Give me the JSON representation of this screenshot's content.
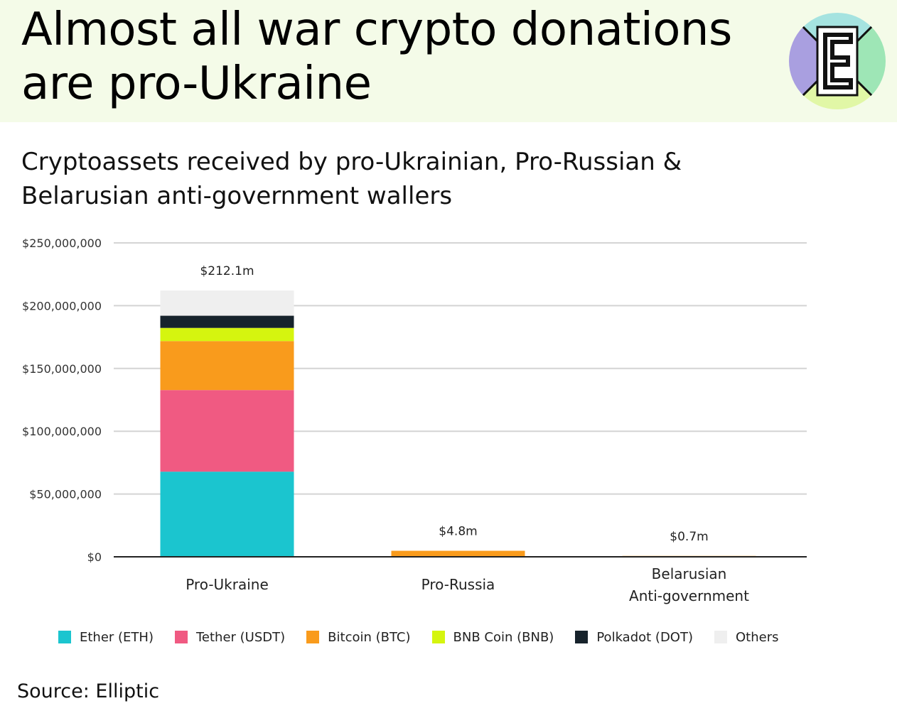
{
  "headline": "Almost all war crypto donations are pro-Ukraine",
  "subtitle": "Cryptoassets received by pro-Ukrainian, Pro-Russian & Belarusian anti-government wallers",
  "source": "Source: Elliptic",
  "logo": {
    "icon": "letter-e-logo-icon",
    "letter": "E",
    "colors": {
      "top": "#a5e3e0",
      "right": "#9ee6b6",
      "bottom": "#e1f7a6",
      "left": "#a99fe0"
    }
  },
  "chart_data": {
    "type": "bar",
    "stacked": true,
    "categories": [
      "Pro-Ukraine",
      "Pro-Russia",
      "Belarusian Anti-government"
    ],
    "category_lines": [
      [
        "Pro-Ukraine"
      ],
      [
        "Pro-Russia"
      ],
      [
        "Belarusian",
        "Anti-government"
      ]
    ],
    "totals_labels": [
      "$212.1m",
      "$4.8m",
      "$0.7m"
    ],
    "series": [
      {
        "name": "Ether (ETH)",
        "color": "#1bc5cf",
        "values": [
          67800000,
          0,
          0
        ]
      },
      {
        "name": "Tether (USDT)",
        "color": "#f05a82",
        "values": [
          65000000,
          0,
          0
        ]
      },
      {
        "name": "Bitcoin (BTC)",
        "color": "#f99b1c",
        "values": [
          39000000,
          4800000,
          700000
        ]
      },
      {
        "name": "BNB Coin (BNB)",
        "color": "#d5f50f",
        "values": [
          10500000,
          0,
          0
        ]
      },
      {
        "name": "Polkadot (DOT)",
        "color": "#17232c",
        "values": [
          9700000,
          0,
          0
        ]
      },
      {
        "name": "Others",
        "color": "#efefef",
        "values": [
          20100000,
          0,
          0
        ]
      }
    ],
    "y_ticks": [
      "$0",
      "$50,000,000",
      "$100,000,000",
      "$150,000,000",
      "$200,000,000",
      "$250,000,000"
    ],
    "ylim": [
      0,
      250000000
    ],
    "grid": true,
    "legend_position": "bottom"
  }
}
